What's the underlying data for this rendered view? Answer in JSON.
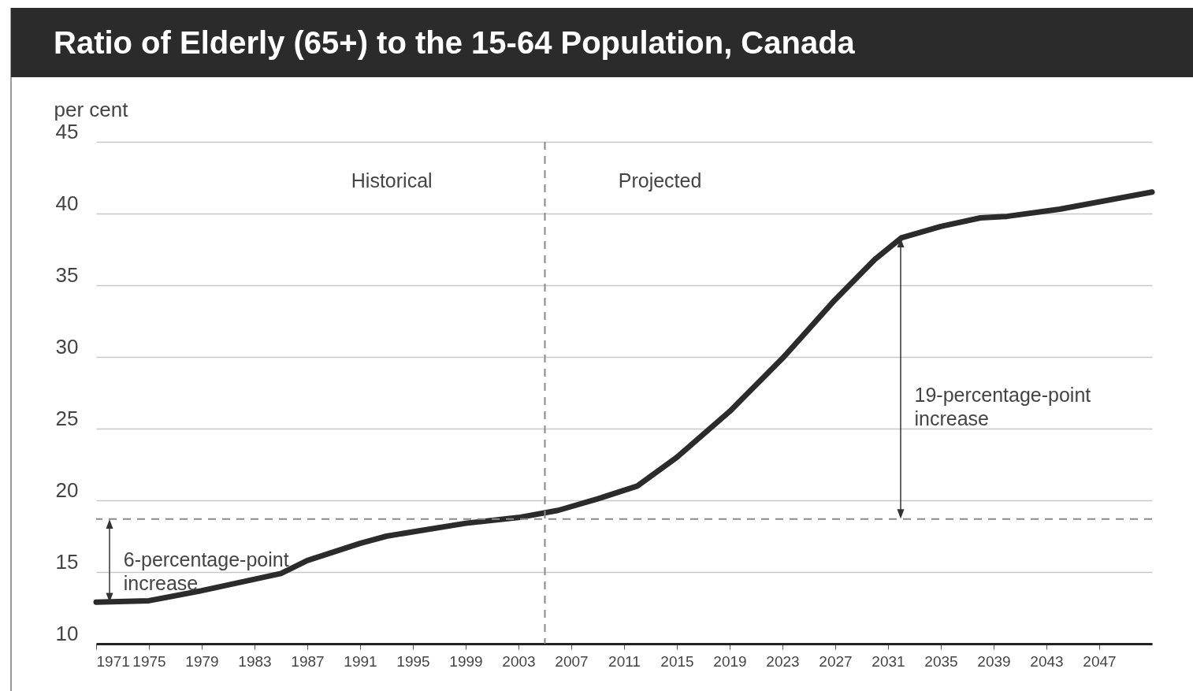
{
  "chart_data": {
    "type": "line",
    "title": "Ratio of Elderly (65+) to the 15-64 Population, Canada",
    "ylabel": "per cent",
    "x": [
      1971,
      1975,
      1979,
      1983,
      1985,
      1987,
      1991,
      1993,
      1995,
      1999,
      2003,
      2006,
      2009,
      2012,
      2015,
      2019,
      2023,
      2027,
      2030,
      2032,
      2035,
      2038,
      2040,
      2044,
      2051
    ],
    "series": [
      {
        "color": "#2b2b2b",
        "values": [
          12.9,
          13.0,
          13.7,
          14.5,
          14.9,
          15.8,
          17.0,
          17.5,
          17.8,
          18.4,
          18.8,
          19.3,
          20.1,
          21.0,
          23.0,
          26.2,
          29.9,
          34.0,
          36.8,
          38.3,
          39.1,
          39.7,
          39.8,
          40.3,
          41.5
        ]
      }
    ],
    "xlim": [
      1971,
      2051
    ],
    "xticks": [
      1971,
      1975,
      1979,
      1983,
      1987,
      1991,
      1995,
      1999,
      2003,
      2007,
      2011,
      2015,
      2019,
      2023,
      2027,
      2031,
      2035,
      2039,
      2043,
      2047
    ],
    "ylim": [
      10,
      45
    ],
    "yticks": [
      10,
      15,
      20,
      25,
      30,
      35,
      40,
      45
    ],
    "grid": "y",
    "line_style": "solid",
    "ref_lines": [
      {
        "axis": "y",
        "value": 18.7,
        "color": "#8a8a8a",
        "line_style": "dashed"
      },
      {
        "axis": "x",
        "value": 2005,
        "color": "#8a8a8a",
        "line_style": "dashed"
      }
    ],
    "annotations": [
      "Historical",
      "Projected",
      {
        "text": "6-percentage-point\nincrease",
        "x": 1972,
        "y": 12.9
      },
      "19-percentage-point\nincrease"
    ]
  }
}
